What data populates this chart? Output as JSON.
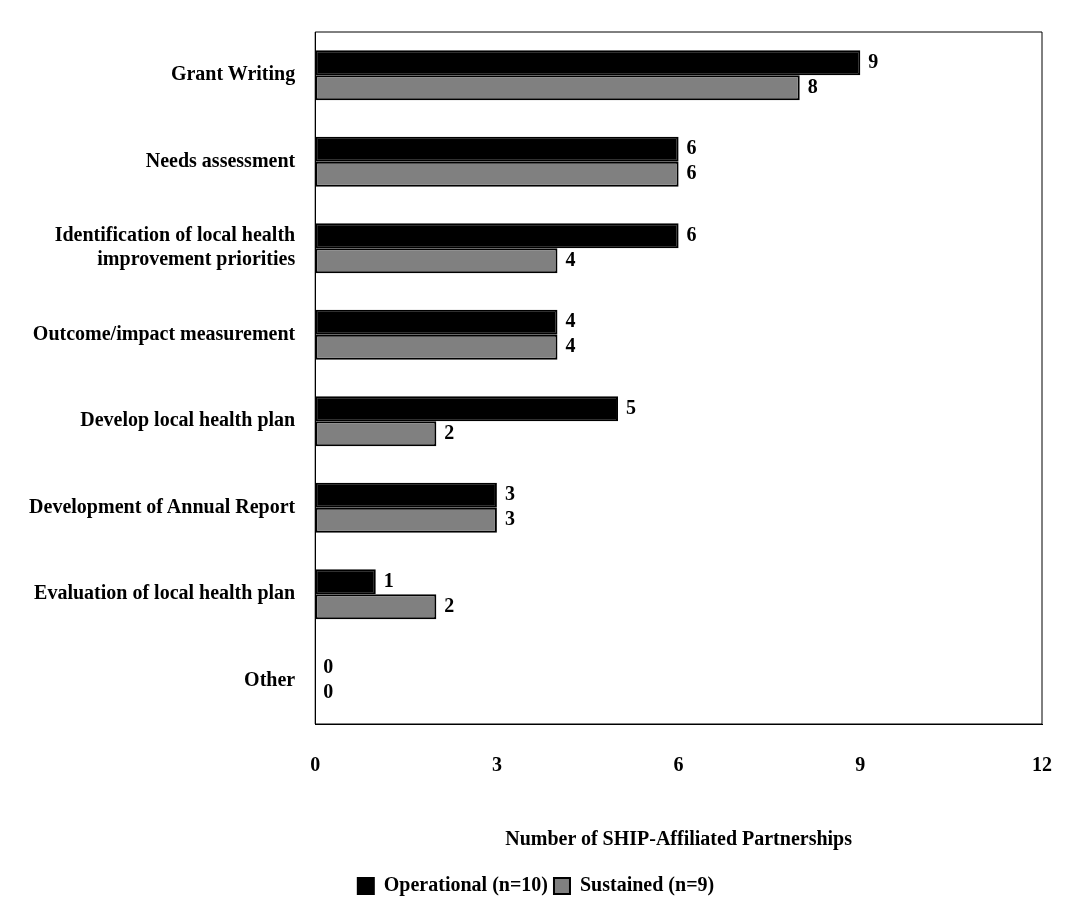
{
  "chart_data": {
    "type": "bar",
    "orientation": "horizontal",
    "xlabel": "Number of SHIP-Affiliated Partnerships",
    "categories": [
      "Grant Writing",
      "Needs assessment",
      "Identification of local health improvement priorities",
      "Outcome/impact measurement",
      "Develop local health plan",
      "Development of Annual Report",
      "Evaluation of local health plan",
      "Other"
    ],
    "series": [
      {
        "name": "Operational (n=10)",
        "color": "#000000",
        "values": [
          9,
          6,
          6,
          4,
          5,
          3,
          1,
          0
        ]
      },
      {
        "name": "Sustained (n=9)",
        "color": "#808080",
        "values": [
          8,
          6,
          4,
          4,
          2,
          3,
          2,
          0
        ]
      }
    ],
    "xlim": [
      0,
      12
    ],
    "xticks": [
      0,
      3,
      6,
      9,
      12
    ],
    "grid": false,
    "legend": "bottom",
    "data_labels": true
  }
}
